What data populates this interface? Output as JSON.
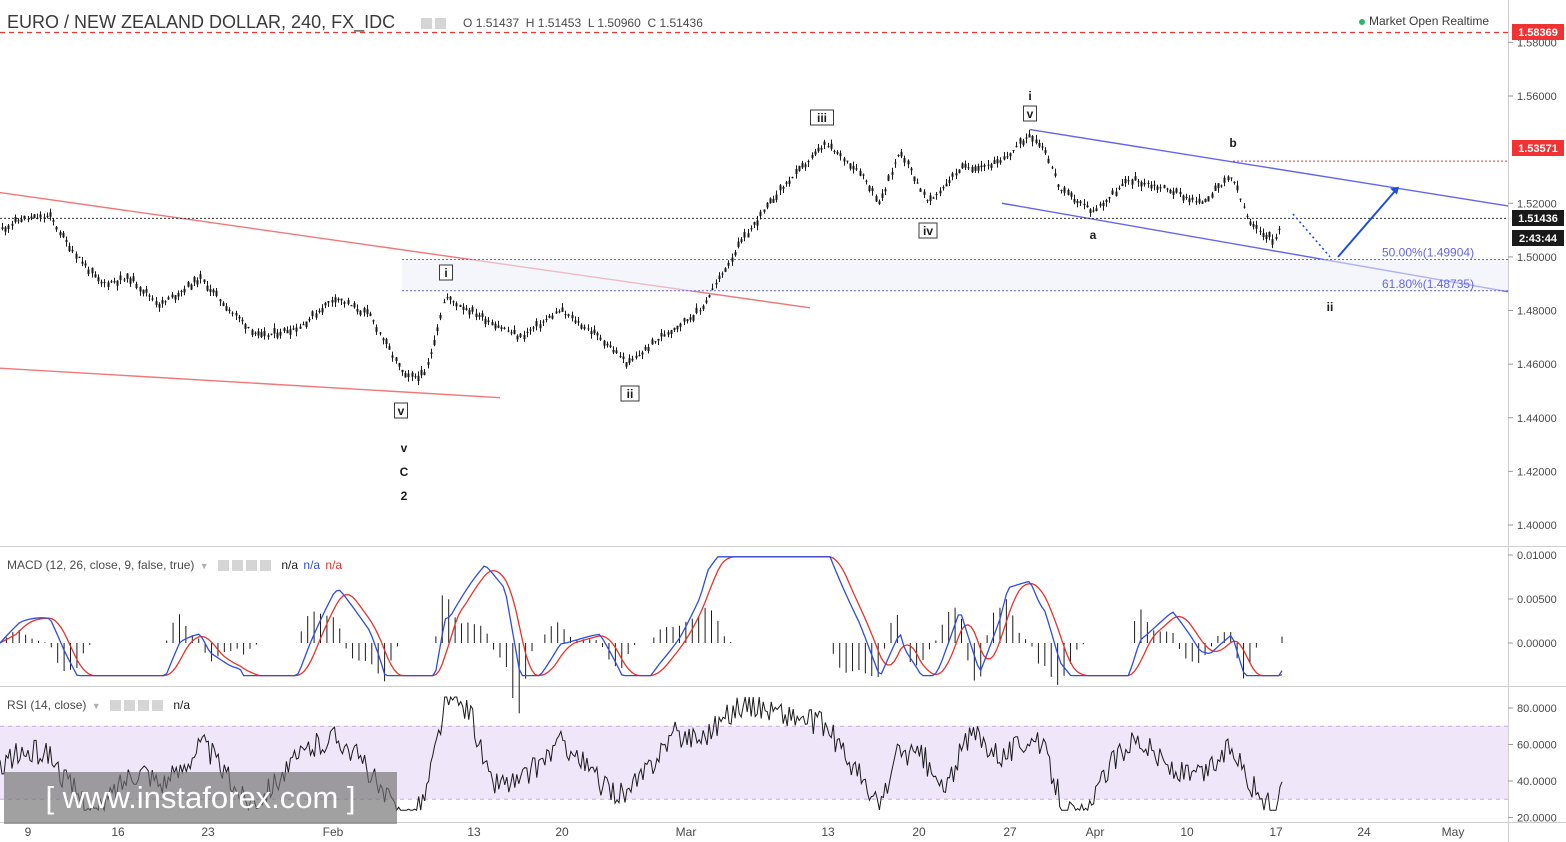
{
  "header": {
    "symbol": "EURO / NEW ZEALAND DOLLAR, 240, FX_IDC",
    "o_label": "O",
    "o_value": "1.51437",
    "h_label": "H",
    "h_value": "1.51453",
    "l_label": "L",
    "l_value": "1.50960",
    "c_label": "C",
    "c_value": "1.51436",
    "market_status": "Market Open Realtime"
  },
  "colors": {
    "candle": "#1a1a1a",
    "red_channel": "#f07878",
    "blue_channel": "#6464f0",
    "projection_arrow": "#1e50e0",
    "resistance_label_bg": "#f03232",
    "price_label_bg": "#1a1a1a",
    "macd_line": "#2e4de3",
    "signal_line": "#e8332a",
    "rsi_band": "#f0e6fa",
    "rsi_line": "#1a1a1a",
    "market_status_dot": "#2db56a"
  },
  "price_axis": {
    "ticks": [
      "1.58000",
      "1.56000",
      "1.52000",
      "1.50000",
      "1.48000",
      "1.46000",
      "1.44000",
      "1.42000",
      "1.40000"
    ],
    "labels": [
      {
        "text": "1.58369",
        "style": "red"
      },
      {
        "text": "1.53571",
        "style": "red"
      },
      {
        "text": "1.51436",
        "style": "dark"
      },
      {
        "text": "2:43:44",
        "style": "dark"
      }
    ]
  },
  "fib_levels": [
    {
      "label": "50.00%(1.49904)"
    },
    {
      "label": "61.80%(1.48735)"
    }
  ],
  "wave_labels": [
    {
      "text": "v",
      "boxed": true
    },
    {
      "text": "v",
      "boxed": false
    },
    {
      "text": "C",
      "boxed": false
    },
    {
      "text": "2",
      "boxed": false
    },
    {
      "text": "i",
      "boxed": true
    },
    {
      "text": "ii",
      "boxed": true
    },
    {
      "text": "iii",
      "boxed": true
    },
    {
      "text": "iv",
      "boxed": true
    },
    {
      "text": "v",
      "boxed": true
    },
    {
      "text": "i",
      "boxed": false
    },
    {
      "text": "a",
      "boxed": false
    },
    {
      "text": "b",
      "boxed": false
    },
    {
      "text": "ii",
      "boxed": false
    }
  ],
  "macd_panel": {
    "title": "MACD (12, 26, close, 9, false, true)",
    "values": [
      "n/a",
      "n/a",
      "n/a"
    ],
    "ticks": [
      "0.01000",
      "0.00500",
      "0.00000"
    ]
  },
  "rsi_panel": {
    "title": "RSI (14, close)",
    "value": "n/a",
    "ticks": [
      "80.0000",
      "60.0000",
      "40.0000",
      "20.0000"
    ]
  },
  "time_axis": [
    "9",
    "16",
    "23",
    "Feb",
    "13",
    "20",
    "Mar",
    "13",
    "20",
    "27",
    "Apr",
    "10",
    "17",
    "24",
    "May"
  ],
  "watermark": {
    "text": "[ www.instaforex.com ]"
  },
  "chart_data": {
    "type": "candlestick",
    "instrument": "EURO / NEW ZEALAND DOLLAR",
    "timeframe": "240",
    "source": "FX_IDC",
    "ylim": [
      1.39,
      1.585
    ],
    "last_close": 1.51436,
    "x_ticks": [
      "9",
      "16",
      "23",
      "Feb",
      "13",
      "20",
      "Mar",
      "13",
      "20",
      "27",
      "Apr",
      "10",
      "17",
      "24",
      "May"
    ],
    "close_path": [
      {
        "x": 0,
        "y": 1.51
      },
      {
        "x": 20,
        "y": 1.514
      },
      {
        "x": 50,
        "y": 1.515
      },
      {
        "x": 65,
        "y": 1.506
      },
      {
        "x": 100,
        "y": 1.49
      },
      {
        "x": 130,
        "y": 1.492
      },
      {
        "x": 160,
        "y": 1.482
      },
      {
        "x": 200,
        "y": 1.492
      },
      {
        "x": 230,
        "y": 1.48
      },
      {
        "x": 260,
        "y": 1.47
      },
      {
        "x": 300,
        "y": 1.474
      },
      {
        "x": 335,
        "y": 1.485
      },
      {
        "x": 370,
        "y": 1.478
      },
      {
        "x": 405,
        "y": 1.455
      },
      {
        "x": 425,
        "y": 1.456
      },
      {
        "x": 445,
        "y": 1.485
      },
      {
        "x": 470,
        "y": 1.48
      },
      {
        "x": 520,
        "y": 1.47
      },
      {
        "x": 560,
        "y": 1.48
      },
      {
        "x": 600,
        "y": 1.47
      },
      {
        "x": 628,
        "y": 1.46
      },
      {
        "x": 660,
        "y": 1.47
      },
      {
        "x": 700,
        "y": 1.48
      },
      {
        "x": 740,
        "y": 1.505
      },
      {
        "x": 780,
        "y": 1.525
      },
      {
        "x": 825,
        "y": 1.542
      },
      {
        "x": 860,
        "y": 1.532
      },
      {
        "x": 880,
        "y": 1.52
      },
      {
        "x": 900,
        "y": 1.54
      },
      {
        "x": 928,
        "y": 1.52
      },
      {
        "x": 960,
        "y": 1.533
      },
      {
        "x": 1000,
        "y": 1.535
      },
      {
        "x": 1030,
        "y": 1.546
      },
      {
        "x": 1045,
        "y": 1.54
      },
      {
        "x": 1060,
        "y": 1.525
      },
      {
        "x": 1093,
        "y": 1.517
      },
      {
        "x": 1130,
        "y": 1.529
      },
      {
        "x": 1170,
        "y": 1.525
      },
      {
        "x": 1200,
        "y": 1.52
      },
      {
        "x": 1232,
        "y": 1.53
      },
      {
        "x": 1250,
        "y": 1.512
      },
      {
        "x": 1275,
        "y": 1.506
      },
      {
        "x": 1282,
        "y": 1.5143
      }
    ],
    "annotations": {
      "resistance_line": 1.53571,
      "last_price_line": 1.51436,
      "fib_50": 1.49904,
      "fib_618": 1.48735,
      "prior_high": 1.58369
    },
    "macd": {
      "ylim": [
        -0.0035,
        0.0105
      ]
    },
    "rsi": {
      "ylim": [
        18,
        85
      ],
      "band": [
        30,
        70
      ]
    }
  }
}
